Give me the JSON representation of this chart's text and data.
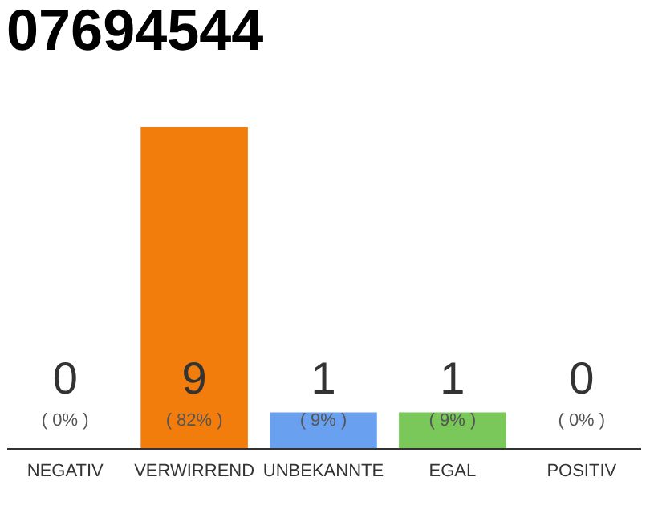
{
  "chart_data": {
    "type": "bar",
    "title": "07694544",
    "categories": [
      "NEGATIV",
      "VERWIRREND",
      "UNBEKANNTE",
      "EGAL",
      "POSITIV"
    ],
    "values": [
      0,
      9,
      1,
      1,
      0
    ],
    "colors": [
      "#f0f0f0",
      "#f27d0c",
      "#6aa0f0",
      "#7ac75a",
      "#f0f0f0"
    ],
    "ylim": [
      0,
      9
    ],
    "data_labels": true,
    "tick_labels": "x",
    "grid": false,
    "legend": false,
    "annotations": [
      "( 0% )",
      "( 82% )",
      "( 9% )",
      "( 9% )",
      "( 0% )"
    ]
  }
}
